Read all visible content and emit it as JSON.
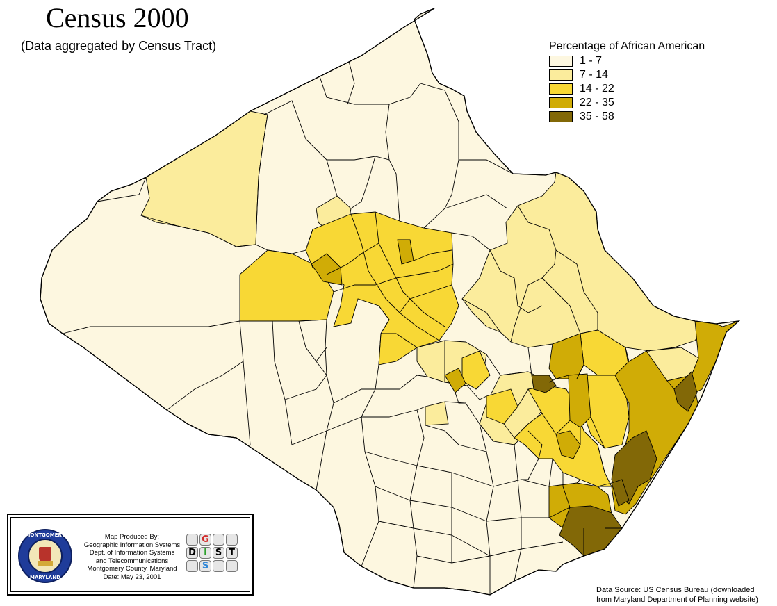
{
  "title": "Census 2000",
  "subtitle": "(Data aggregated by Census Tract)",
  "legend": {
    "title": "Percentage of African American",
    "items": [
      {
        "label": "1 - 7",
        "color": "#fdf7e0"
      },
      {
        "label": "7 - 14",
        "color": "#fbec9c"
      },
      {
        "label": "14 - 22",
        "color": "#f8d835"
      },
      {
        "label": "22 - 35",
        "color": "#d0ac06"
      },
      {
        "label": "35 - 58",
        "color": "#826807"
      }
    ]
  },
  "outline_color": "#000000",
  "credit": {
    "lines": [
      "Map Produced By:",
      "Geographic Information Systems",
      "Dept. of Information Systems",
      "and Telecommunications",
      "Montgomery County, Maryland",
      "Date: May 23, 2001"
    ],
    "seal_text_top": "MONTGOMERY COUNTY",
    "seal_text_bottom": "MARYLAND",
    "seal_year_left": "17",
    "seal_year_right": "76",
    "logo_letters": [
      {
        "letter": "G",
        "color": "#d22b2b"
      },
      {
        "letter": "D",
        "color": "#000000"
      },
      {
        "letter": "I",
        "color": "#2ca02c"
      },
      {
        "letter": "S",
        "color": "#000000"
      },
      {
        "letter": "T",
        "color": "#000000"
      },
      {
        "letter": "S",
        "color": "#2f86d6"
      }
    ]
  },
  "source": {
    "line1": "Data Source:  US Census Bureau (downloaded",
    "line2": "from Maryland Department of Planning website)"
  }
}
